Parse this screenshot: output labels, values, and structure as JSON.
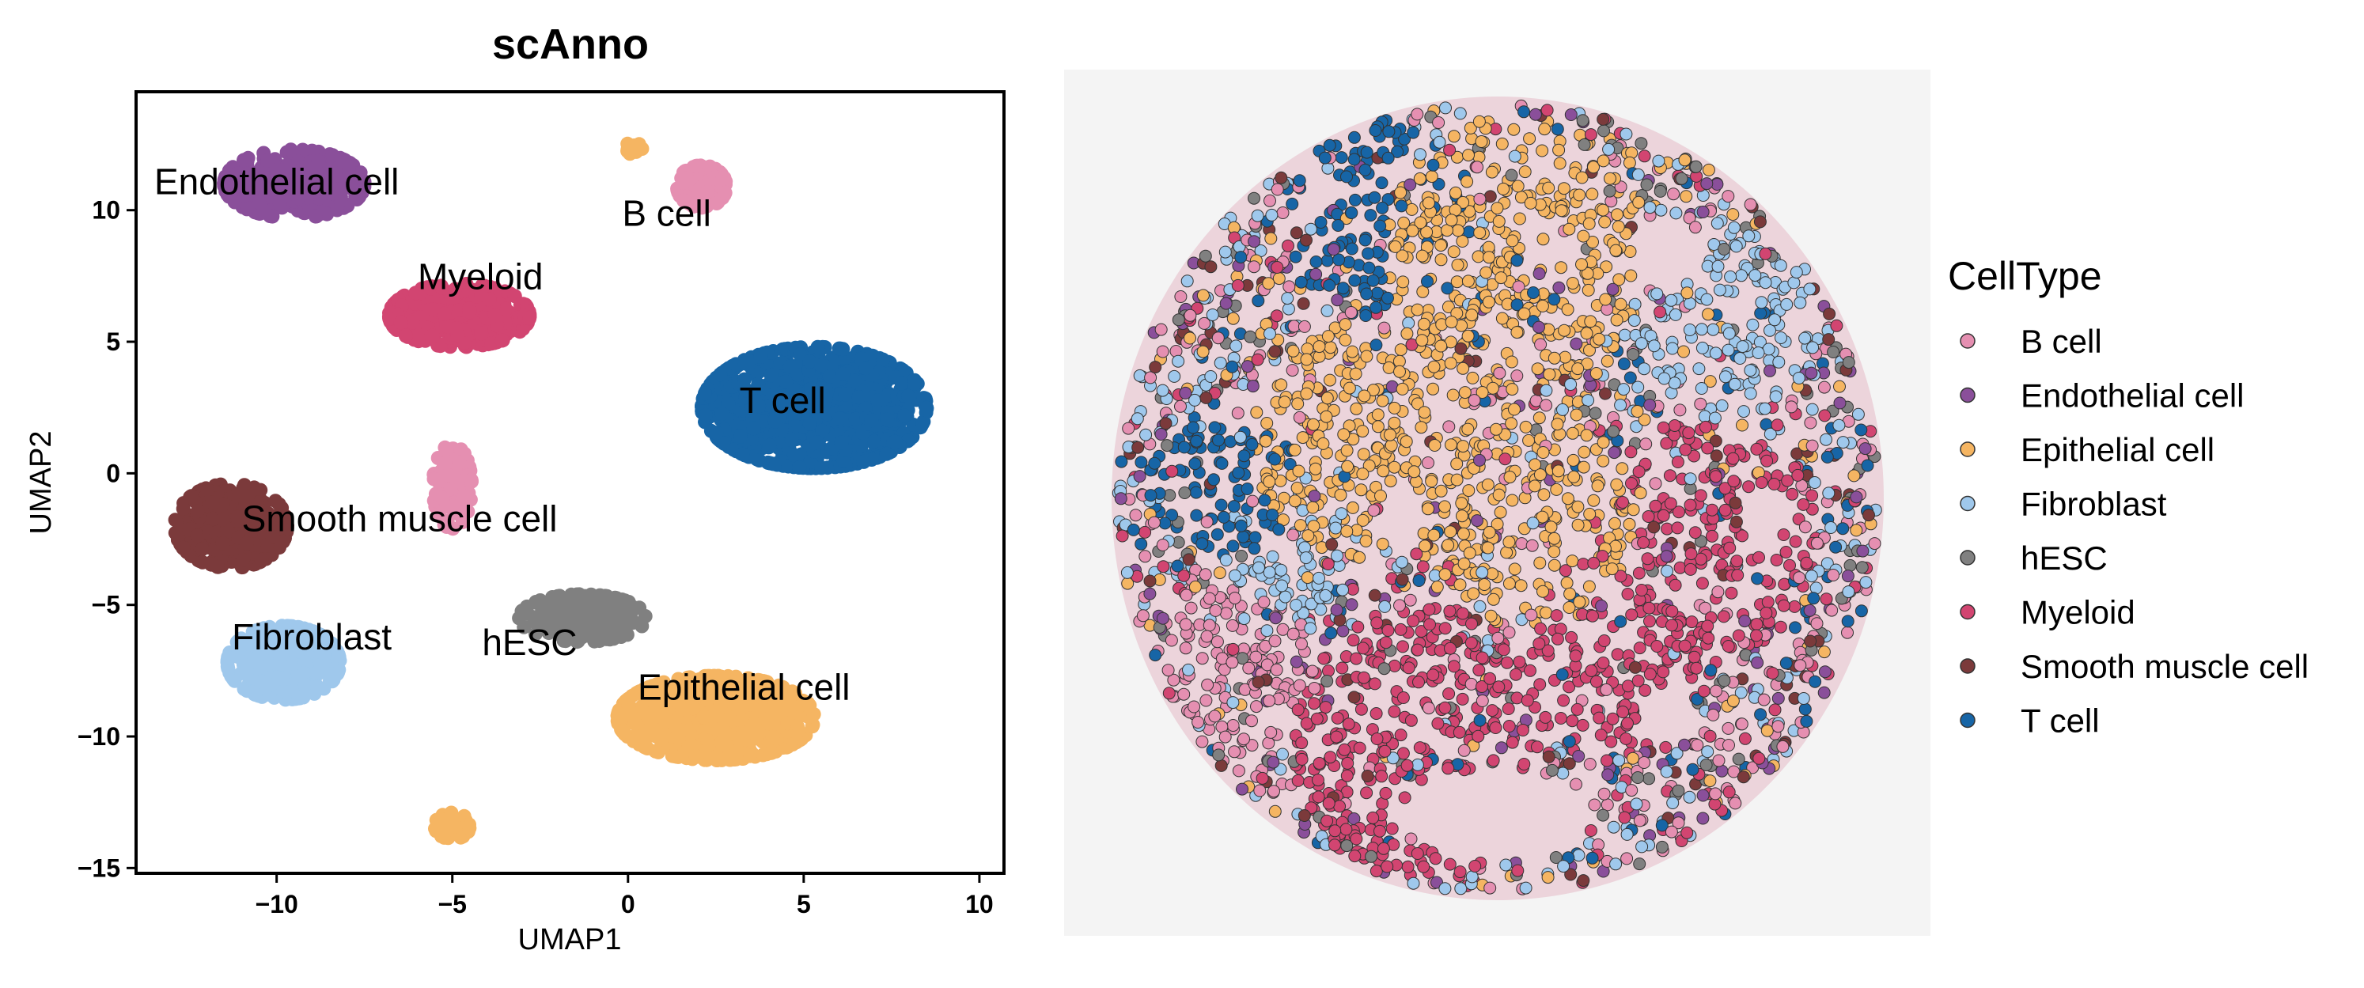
{
  "chart_data": [
    {
      "type": "scatter",
      "title": "scAnno",
      "xlabel": "UMAP1",
      "ylabel": "UMAP2",
      "xlim": [
        -14,
        10.7
      ],
      "ylim": [
        -15.2,
        14.5
      ],
      "xticks": [
        -10,
        -5,
        0,
        5,
        10
      ],
      "yticks": [
        -15,
        -10,
        -5,
        0,
        5,
        10
      ],
      "xtick_labels": [
        "−10",
        "−5",
        "0",
        "5",
        "10"
      ],
      "ytick_labels": [
        "−15",
        "−10",
        "−5",
        "0",
        "5",
        "10"
      ],
      "grid": false,
      "clusters": [
        {
          "name": "Endothelial cell",
          "color": "#8a4f9a",
          "label": "Endothelial cell",
          "label_pos": [
            -10.0,
            10.6
          ],
          "center": [
            -9.5,
            11.0
          ],
          "spread": [
            2.0,
            1.3
          ],
          "count": 420
        },
        {
          "name": "B cell",
          "color": "#e58fb1",
          "label": "B cell",
          "label_pos": [
            1.1,
            9.4
          ],
          "center": [
            2.1,
            10.9
          ],
          "spread": [
            0.7,
            0.8
          ],
          "count": 150
        },
        {
          "name": "Myeloid",
          "color": "#d24571",
          "label": "Myeloid",
          "label_pos": [
            -4.2,
            7.0
          ],
          "center": [
            -4.8,
            6.0
          ],
          "spread": [
            2.0,
            1.2
          ],
          "count": 420
        },
        {
          "name": "T cell",
          "color": "#1765a6",
          "label": "T cell",
          "label_pos": [
            4.4,
            2.3
          ],
          "center": [
            5.3,
            2.5
          ],
          "spread": [
            3.2,
            2.3
          ],
          "count": 900
        },
        {
          "name": "B cell",
          "color": "#e58fb1",
          "label": "",
          "label_pos": null,
          "center": [
            -5.0,
            -0.5
          ],
          "spread": [
            0.55,
            1.6
          ],
          "count": 120
        },
        {
          "name": "Smooth muscle cell",
          "color": "#7b3a3b",
          "label": "Smooth muscle cell",
          "label_pos": [
            -6.5,
            -2.2
          ],
          "center": [
            -11.3,
            -2.0
          ],
          "spread": [
            1.6,
            1.6
          ],
          "count": 380
        },
        {
          "name": "Fibroblast",
          "color": "#9fc8ec",
          "label": "Fibroblast",
          "label_pos": [
            -9.0,
            -6.7
          ],
          "center": [
            -9.8,
            -7.2
          ],
          "spread": [
            1.6,
            1.4
          ],
          "count": 380
        },
        {
          "name": "hESC",
          "color": "#808080",
          "label": "hESC",
          "label_pos": [
            -2.8,
            -6.9
          ],
          "center": [
            -1.3,
            -5.5
          ],
          "spread": [
            1.8,
            0.9
          ],
          "count": 200
        },
        {
          "name": "Epithelial cell",
          "color": "#f5b562",
          "label": "Epithelial cell",
          "label_pos": [
            3.3,
            -8.6
          ],
          "center": [
            2.5,
            -9.3
          ],
          "spread": [
            2.8,
            1.6
          ],
          "count": 650
        },
        {
          "name": "Epithelial cell",
          "color": "#f5b562",
          "label": "",
          "label_pos": null,
          "center": [
            -5.0,
            -13.4
          ],
          "spread": [
            0.5,
            0.5
          ],
          "count": 60
        },
        {
          "name": "Epithelial cell",
          "color": "#f5b562",
          "label": "",
          "label_pos": null,
          "center": [
            0.1,
            12.3
          ],
          "spread": [
            0.3,
            0.3
          ],
          "count": 12
        }
      ]
    },
    {
      "type": "scatter",
      "title": "",
      "legend_title": "CellType",
      "legend_position": "right",
      "categories": [
        "B cell",
        "Endothelial cell",
        "Epithelial cell",
        "Fibroblast",
        "hESC",
        "Myeloid",
        "Smooth muscle cell",
        "T cell"
      ],
      "colors": {
        "B cell": "#e58fb1",
        "Endothelial cell": "#8a4f9a",
        "Epithelial cell": "#f5b562",
        "Fibroblast": "#9fc8ec",
        "hESC": "#808080",
        "Myeloid": "#d24571",
        "Smooth muscle cell": "#7b3a3b",
        "T cell": "#1765a6"
      },
      "background_tissue_color": "#e6b9c6"
    }
  ]
}
